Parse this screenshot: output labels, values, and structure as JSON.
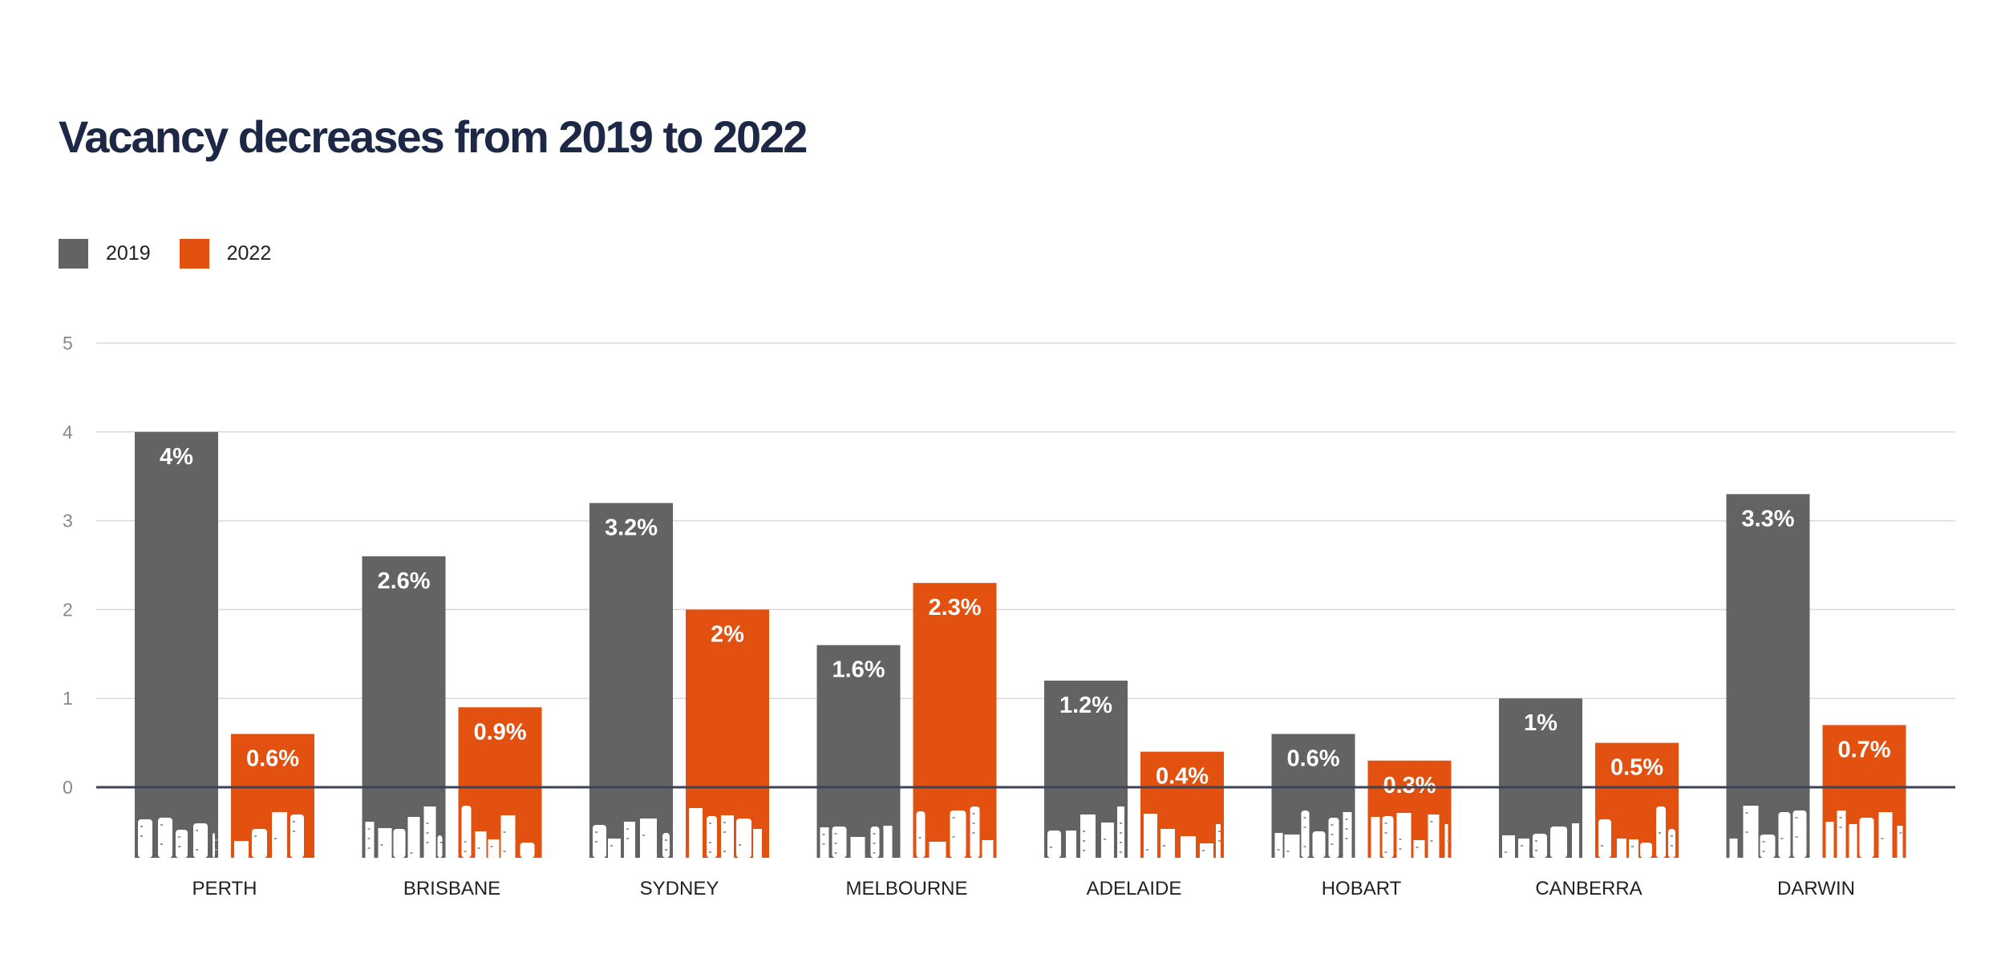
{
  "chart_data": {
    "type": "bar",
    "title": "Vacancy decreases from 2019 to 2022",
    "categories": [
      "PERTH",
      "BRISBANE",
      "SYDNEY",
      "MELBOURNE",
      "ADELAIDE",
      "HOBART",
      "CANBERRA",
      "DARWIN"
    ],
    "series": [
      {
        "name": "2019",
        "color": "#636363",
        "values": [
          4,
          2.6,
          3.2,
          1.6,
          1.2,
          0.6,
          1,
          3.3
        ],
        "labels": [
          "4%",
          "2.6%",
          "3.2%",
          "1.6%",
          "1.2%",
          "0.6%",
          "1%",
          "3.3%"
        ]
      },
      {
        "name": "2022",
        "color": "#e35110",
        "values": [
          0.6,
          0.9,
          2,
          2.3,
          0.4,
          0.3,
          0.5,
          0.7
        ],
        "labels": [
          "0.6%",
          "0.9%",
          "2%",
          "2.3%",
          "0.4%",
          "0.3%",
          "0.5%",
          "0.7%"
        ]
      }
    ],
    "yticks": [
      "0",
      "1",
      "2",
      "3",
      "4",
      "5"
    ],
    "ylim": [
      0,
      5
    ],
    "xlabel": "",
    "ylabel": "",
    "grid": true,
    "legend_position": "top-left"
  }
}
